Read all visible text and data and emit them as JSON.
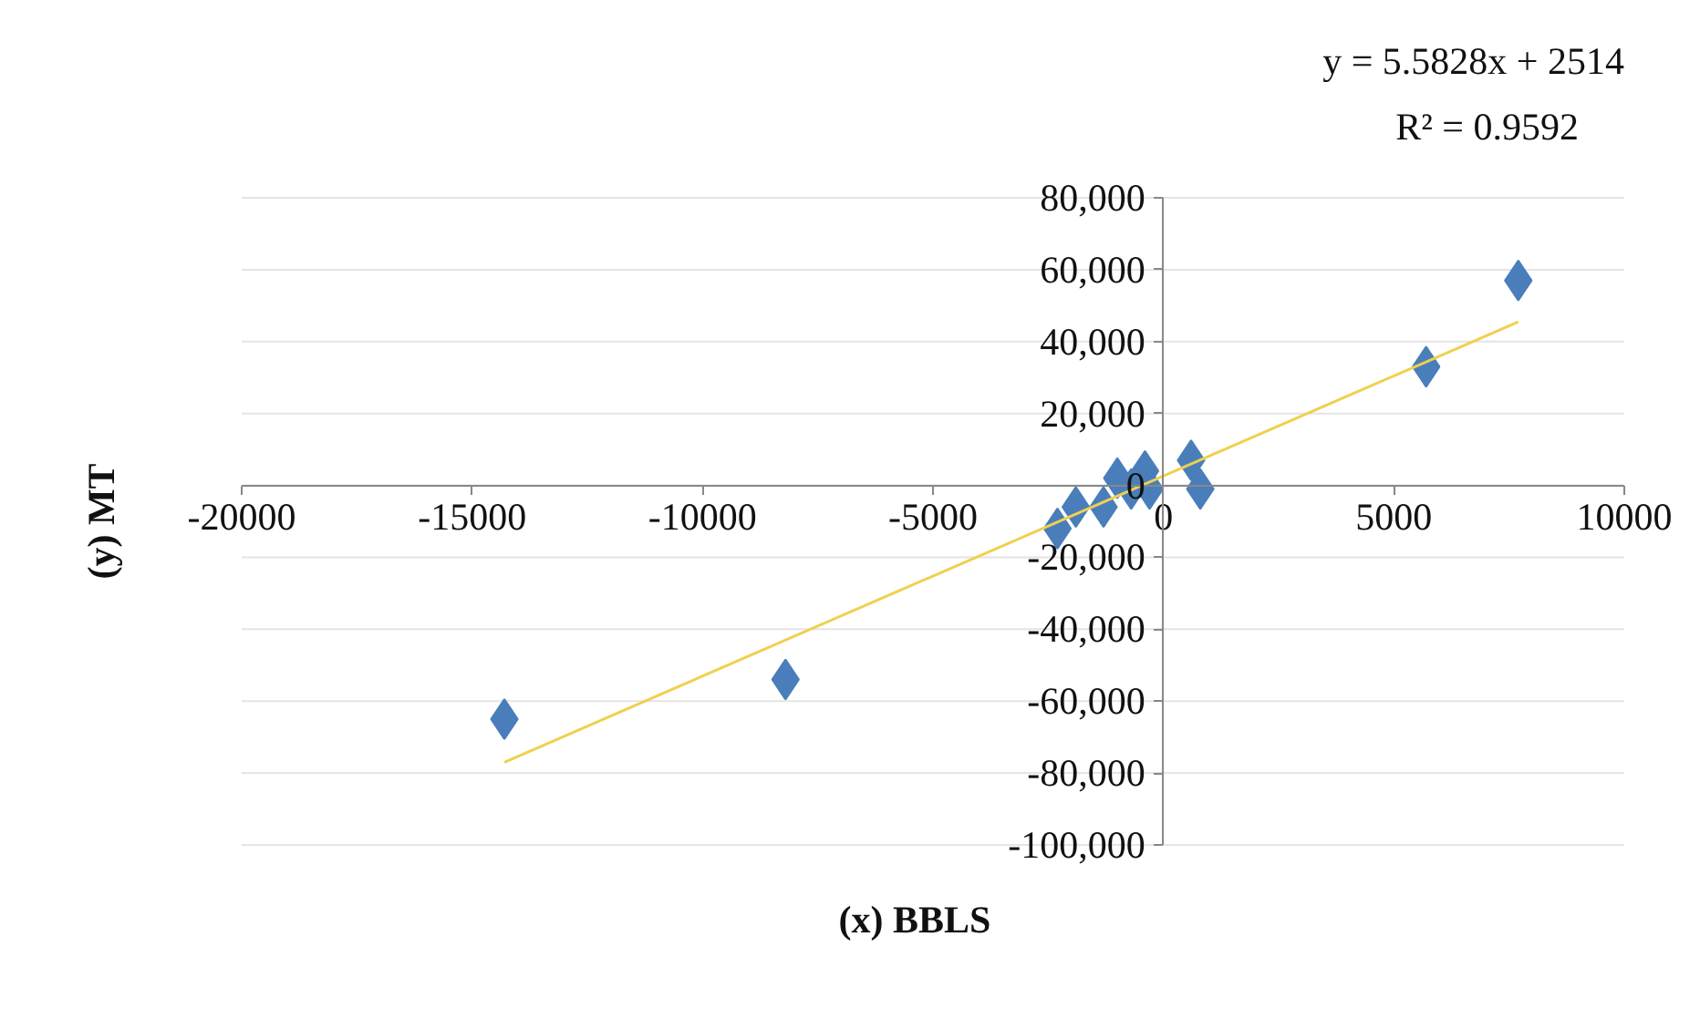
{
  "chart_data": {
    "type": "scatter",
    "xlabel": "(x) BBLS",
    "ylabel": "(y) MT",
    "annotations": [
      "y = 5.5828x + 2514",
      "R² = 0.9592"
    ],
    "xlim": [
      -20000,
      10000
    ],
    "xticks": [
      -20000,
      -15000,
      -10000,
      -5000,
      0,
      5000,
      10000
    ],
    "ylim": [
      -100000,
      80000
    ],
    "yticks": [
      {
        "value": -100000,
        "label": "-100,000"
      },
      {
        "value": -80000,
        "label": "-80,000"
      },
      {
        "value": -60000,
        "label": "-60,000"
      },
      {
        "value": -40000,
        "label": "-40,000"
      },
      {
        "value": -20000,
        "label": "-20,000"
      },
      0,
      {
        "value": 20000,
        "label": "20,000"
      },
      {
        "value": 40000,
        "label": "40,000"
      },
      {
        "value": 60000,
        "label": "60,000"
      },
      {
        "value": 80000,
        "label": "80,000"
      }
    ],
    "grid": "y",
    "series": [
      {
        "color": "#4a7ebb",
        "marker": "diamond",
        "x": [
          -14300,
          -8200,
          -2300,
          -1900,
          -1300,
          -1000,
          -700,
          -400,
          -300,
          600,
          800,
          5700,
          7700
        ],
        "values": [
          -65000,
          -54000,
          -12000,
          -6000,
          -6000,
          2000,
          -1000,
          4000,
          -1000,
          7000,
          -1000,
          33000,
          57000
        ]
      },
      {
        "type": "line",
        "color": "#f0d050",
        "x": [
          -14300,
          7700
        ],
        "values": [
          -77000,
          45500
        ]
      }
    ]
  }
}
